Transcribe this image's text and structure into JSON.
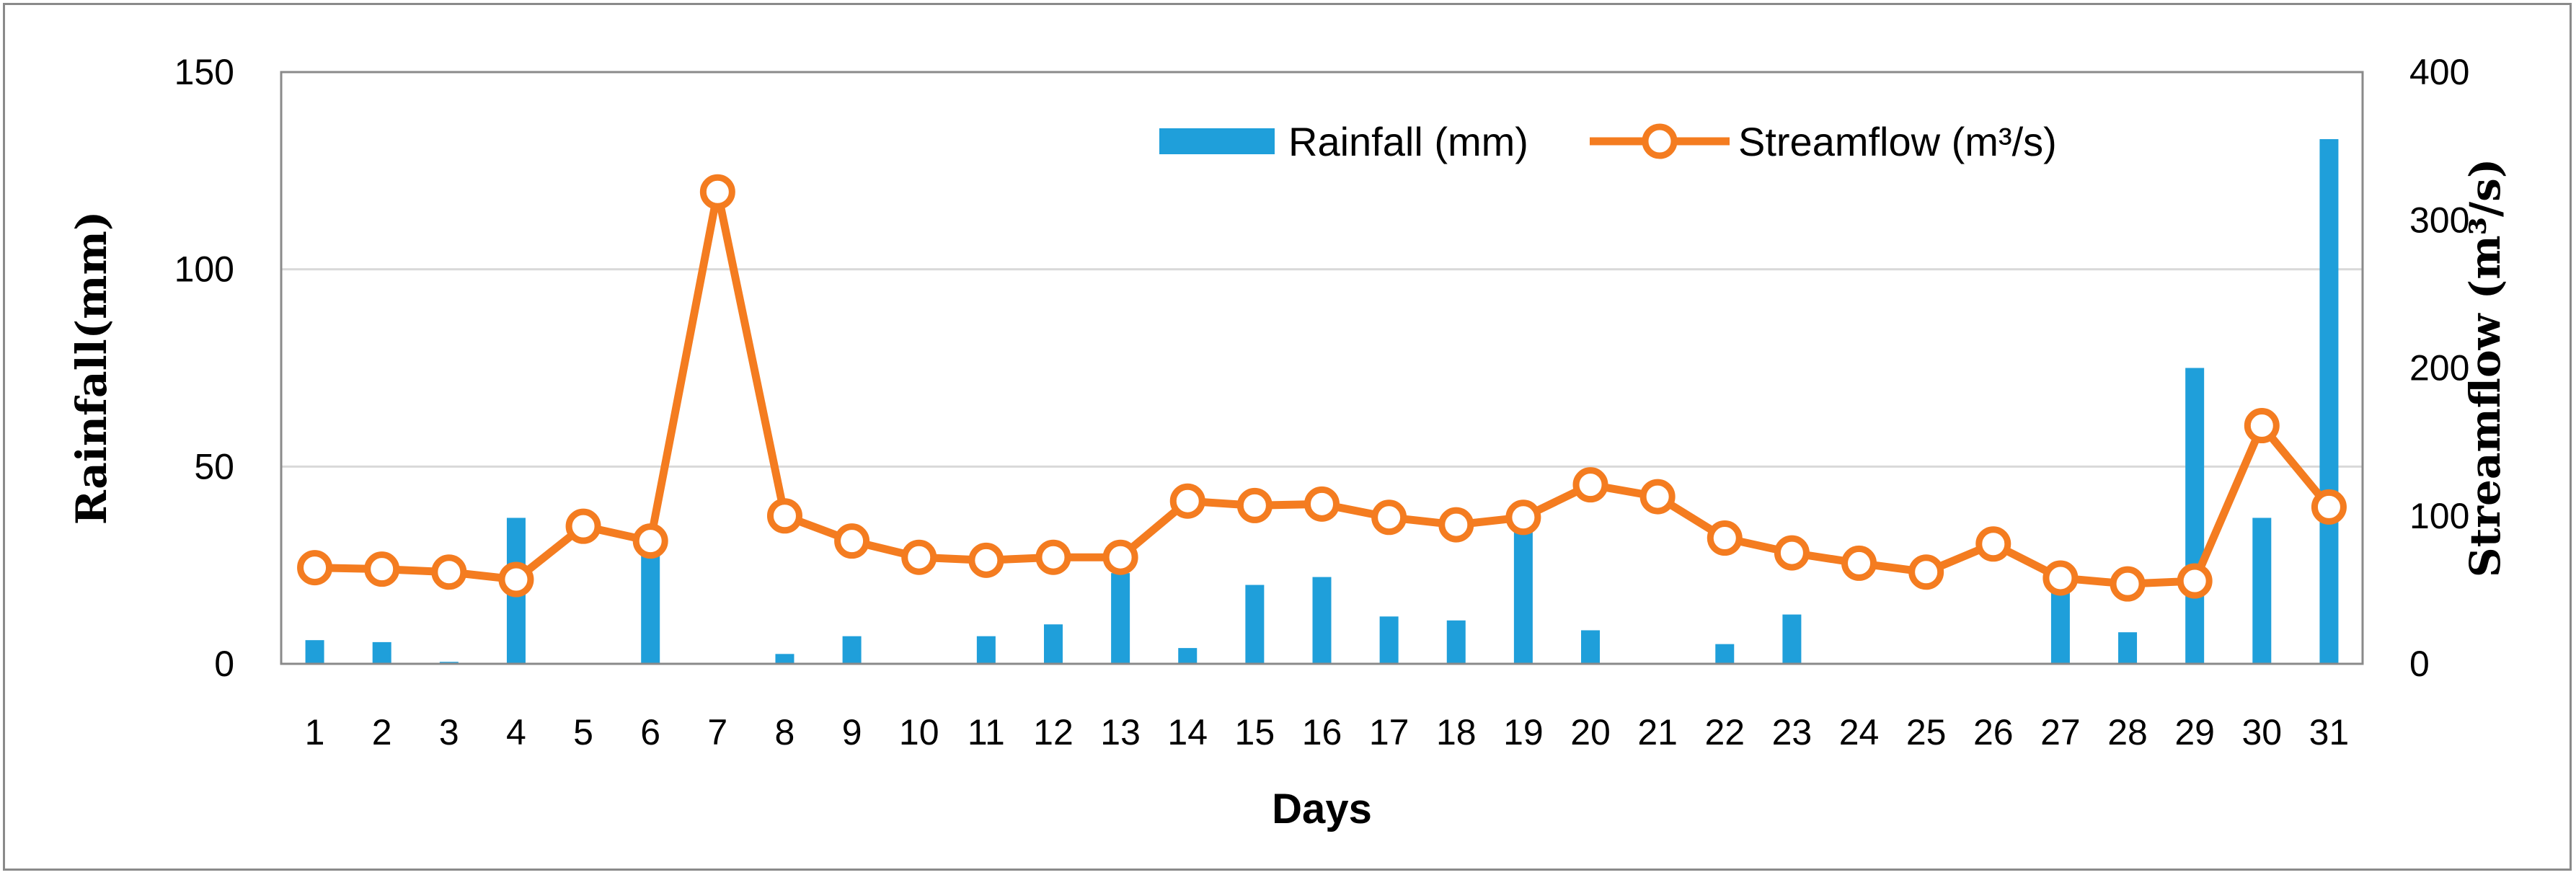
{
  "chart_data": {
    "type": "bar+line",
    "title": "",
    "xlabel": "Days",
    "ylabel_left": "Rainfall(mm)",
    "ylabel_right": "Streamflow (m³/s)",
    "ylim_left": [
      0,
      150
    ],
    "yticks_left": [
      "0",
      "50",
      "100",
      "150"
    ],
    "ylim_right": [
      0,
      400
    ],
    "yticks_right": [
      "0",
      "100",
      "200",
      "300",
      "400"
    ],
    "grid": true,
    "legend_position": "top-right",
    "categories": [
      "1",
      "2",
      "3",
      "4",
      "5",
      "6",
      "7",
      "8",
      "9",
      "10",
      "11",
      "12",
      "13",
      "14",
      "15",
      "16",
      "17",
      "18",
      "19",
      "20",
      "21",
      "22",
      "23",
      "24",
      "25",
      "26",
      "27",
      "28",
      "29",
      "30",
      "31"
    ],
    "series": [
      {
        "name": "Rainfall (mm)",
        "type": "bar",
        "axis": "left",
        "color": "#1f9fda",
        "values": [
          6,
          5.5,
          0.5,
          37,
          0,
          30,
          0,
          2.5,
          7,
          0,
          7,
          10,
          23,
          4,
          20,
          22,
          12,
          11,
          35,
          8.5,
          0,
          5,
          12.5,
          0,
          0,
          0,
          18,
          8,
          75,
          37,
          133
        ]
      },
      {
        "name": "Streamflow (m³/s)",
        "type": "line",
        "axis": "right",
        "color": "#f47c20",
        "values": [
          65,
          64,
          62,
          57,
          93,
          83,
          319,
          100,
          83,
          72,
          70,
          72,
          72,
          110,
          107,
          108,
          99,
          94,
          99,
          121,
          113,
          85,
          75,
          68,
          62,
          81,
          58,
          54,
          56,
          161,
          106
        ]
      }
    ]
  }
}
